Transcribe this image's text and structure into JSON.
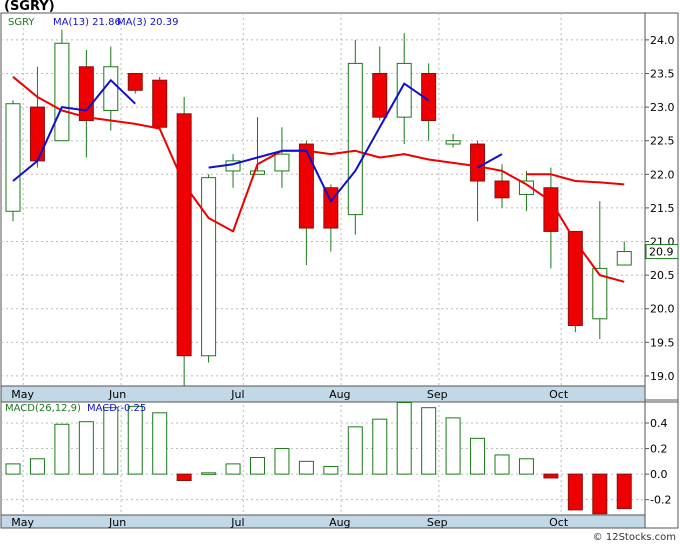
{
  "title": "(SGRY)",
  "credit": "© 12Stocks.com",
  "colors": {
    "up": "#1a7a1a",
    "down": "#ee0000",
    "ma13": "#ee0000",
    "ma3": "#1010cc",
    "macd_bar": "#1a7a1a",
    "axis_band": "#c2d8e6"
  },
  "chart_data": [
    {
      "type": "candlestick",
      "ticker": "SGRY",
      "legend": [
        {
          "label": "SGRY",
          "color": "#1a7a1a"
        },
        {
          "label": "MA(13)",
          "value": "21.86",
          "color": "#1010cc"
        },
        {
          "label": "MA(3)",
          "value": "20.39",
          "color": "#1010cc"
        }
      ],
      "last_price_label": "20.9",
      "ylim": [
        18.85,
        24.4
      ],
      "y_ticks": [
        "24.0",
        "23.5",
        "23.0",
        "22.5",
        "22.0",
        "21.5",
        "21.0",
        "20.5",
        "20.0",
        "19.5",
        "19.0"
      ],
      "x_ticks": [
        {
          "label": "May",
          "index": 1
        },
        {
          "label": "Jun",
          "index": 5
        },
        {
          "label": "Jul",
          "index": 10
        },
        {
          "label": "Aug",
          "index": 14
        },
        {
          "label": "Sep",
          "index": 18
        },
        {
          "label": "Oct",
          "index": 23
        }
      ],
      "candles": [
        {
          "open": 21.45,
          "high": 23.1,
          "low": 21.3,
          "close": 23.05
        },
        {
          "open": 23.0,
          "high": 23.6,
          "low": 22.1,
          "close": 22.2
        },
        {
          "open": 22.5,
          "high": 24.15,
          "low": 22.5,
          "close": 23.95
        },
        {
          "open": 23.6,
          "high": 23.85,
          "low": 22.25,
          "close": 22.8
        },
        {
          "open": 22.95,
          "high": 23.9,
          "low": 22.65,
          "close": 23.6
        },
        {
          "open": 23.5,
          "high": 23.5,
          "low": 23.2,
          "close": 23.25
        },
        {
          "open": 23.4,
          "high": 23.45,
          "low": 22.65,
          "close": 22.7
        },
        {
          "open": 22.9,
          "high": 23.15,
          "low": 18.85,
          "close": 19.3
        },
        {
          "open": 19.3,
          "high": 22.0,
          "low": 19.2,
          "close": 21.95
        },
        {
          "open": 22.05,
          "high": 22.3,
          "low": 21.8,
          "close": 22.2
        },
        {
          "open": 22.0,
          "high": 22.85,
          "low": 22.0,
          "close": 22.05
        },
        {
          "open": 22.05,
          "high": 22.7,
          "low": 21.8,
          "close": 22.3
        },
        {
          "open": 22.45,
          "high": 22.5,
          "low": 20.65,
          "close": 21.2
        },
        {
          "open": 21.8,
          "high": 21.85,
          "low": 20.85,
          "close": 21.2
        },
        {
          "open": 21.4,
          "high": 24.0,
          "low": 21.1,
          "close": 23.65
        },
        {
          "open": 23.5,
          "high": 23.9,
          "low": 22.8,
          "close": 22.85
        },
        {
          "open": 22.85,
          "high": 24.1,
          "low": 22.45,
          "close": 23.65
        },
        {
          "open": 23.5,
          "high": 23.65,
          "low": 22.5,
          "close": 22.8
        },
        {
          "open": 22.45,
          "high": 22.6,
          "low": 22.4,
          "close": 22.5
        },
        {
          "open": 22.45,
          "high": 22.5,
          "low": 21.3,
          "close": 21.9
        },
        {
          "open": 21.9,
          "high": 22.15,
          "low": 21.5,
          "close": 21.65
        },
        {
          "open": 21.7,
          "high": 22.05,
          "low": 21.45,
          "close": 21.9
        },
        {
          "open": 21.8,
          "high": 22.1,
          "low": 20.6,
          "close": 21.15
        },
        {
          "open": 21.15,
          "high": 21.15,
          "low": 19.65,
          "close": 19.75
        },
        {
          "open": 19.85,
          "high": 21.6,
          "low": 19.55,
          "close": 20.6
        },
        {
          "open": 20.65,
          "high": 21.0,
          "low": 20.65,
          "close": 20.85
        }
      ],
      "ma13": [
        {
          "index": 0,
          "value": 23.45
        },
        {
          "index": 1,
          "value": 23.15
        },
        {
          "index": 2,
          "value": 22.95
        },
        {
          "index": 3,
          "value": 22.85
        },
        {
          "index": 4,
          "value": 22.8
        },
        {
          "index": 5,
          "value": 22.75
        },
        {
          "index": 6,
          "value": 22.68
        },
        {
          "index": 7,
          "value": 21.85
        },
        {
          "index": 8,
          "value": 21.35
        },
        {
          "index": 9,
          "value": 21.15
        },
        {
          "index": 10,
          "value": 22.15
        },
        {
          "index": 11,
          "value": 22.35
        },
        {
          "index": 12,
          "value": 22.35
        },
        {
          "index": 13,
          "value": 22.3
        },
        {
          "index": 14,
          "value": 22.35
        },
        {
          "index": 15,
          "value": 22.25
        },
        {
          "index": 16,
          "value": 22.3
        },
        {
          "index": 17,
          "value": 22.22
        },
        {
          "index": 18,
          "value": 22.17
        },
        {
          "index": 19,
          "value": 22.12
        },
        {
          "index": 20,
          "value": 22.05
        },
        {
          "index": 21,
          "value": 21.85
        },
        {
          "index": 22,
          "value": 21.6
        },
        {
          "index": 23,
          "value": 21.0
        },
        {
          "index": 24,
          "value": 20.5
        },
        {
          "index": 25,
          "value": 20.4
        }
      ],
      "ma13_tail": [
        {
          "index": 21,
          "value": 22.0
        },
        {
          "index": 22,
          "value": 22.0
        },
        {
          "index": 23,
          "value": 21.9
        },
        {
          "index": 24,
          "value": 21.88
        },
        {
          "index": 25,
          "value": 21.85
        }
      ],
      "ma3": [
        {
          "index": 0,
          "value": 21.9
        },
        {
          "index": 1,
          "value": 22.2
        },
        {
          "index": 2,
          "value": 23.0
        },
        {
          "index": 3,
          "value": 22.95
        },
        {
          "index": 4,
          "value": 23.4
        },
        {
          "index": 5,
          "value": 23.05
        },
        {
          "index": 6,
          "value": null
        },
        {
          "index": 7,
          "value": null
        },
        {
          "index": 8,
          "value": 22.1
        },
        {
          "index": 9,
          "value": 22.15
        },
        {
          "index": 10,
          "value": 22.25
        },
        {
          "index": 11,
          "value": 22.35
        },
        {
          "index": 12,
          "value": 22.35
        },
        {
          "index": 13,
          "value": 21.6
        },
        {
          "index": 14,
          "value": 22.05
        },
        {
          "index": 15,
          "value": 22.7
        },
        {
          "index": 16,
          "value": 23.35
        },
        {
          "index": 17,
          "value": 23.1
        },
        {
          "index": 18,
          "value": null
        },
        {
          "index": 19,
          "value": 22.1
        },
        {
          "index": 20,
          "value": 22.3
        }
      ]
    },
    {
      "type": "bar",
      "legend": [
        {
          "label": "MACD(26,12,9)",
          "color": "#1a7a1a"
        },
        {
          "label": "MACD:-0.25",
          "color": "#1010cc"
        }
      ],
      "ylim": [
        -0.32,
        0.58
      ],
      "y_ticks": [
        "0.4",
        "0.2",
        "0.0",
        "-0.2"
      ],
      "x_ticks": [
        {
          "label": "May",
          "index": 1
        },
        {
          "label": "Jun",
          "index": 5
        },
        {
          "label": "Jul",
          "index": 10
        },
        {
          "label": "Aug",
          "index": 14
        },
        {
          "label": "Sep",
          "index": 18
        },
        {
          "label": "Oct",
          "index": 23
        }
      ],
      "values": [
        0.08,
        0.12,
        0.39,
        0.41,
        0.52,
        0.53,
        0.48,
        -0.05,
        0.01,
        0.08,
        0.13,
        0.2,
        0.1,
        0.06,
        0.37,
        0.43,
        0.56,
        0.52,
        0.44,
        0.28,
        0.15,
        0.12,
        -0.03,
        -0.28,
        -0.31,
        -0.27
      ]
    }
  ]
}
